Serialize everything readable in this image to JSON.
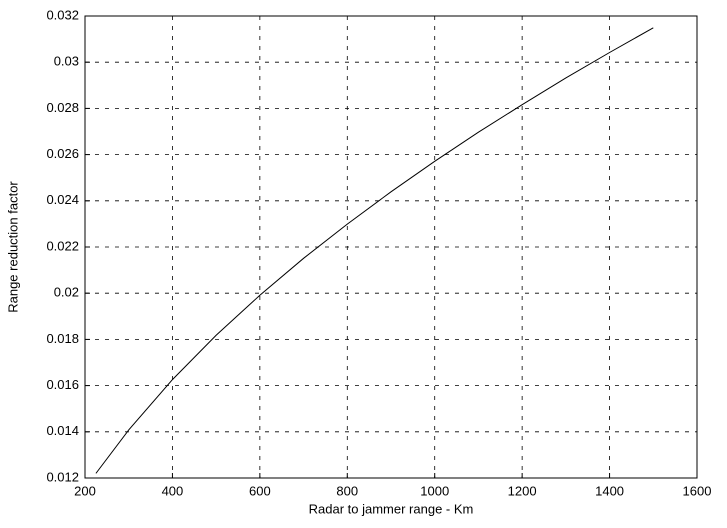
{
  "chart_data": {
    "type": "line",
    "xlabel": "Radar to jammer range - Km",
    "ylabel": "Range reduction factor",
    "x": [
      225,
      300,
      400,
      500,
      600,
      700,
      800,
      900,
      1000,
      1100,
      1200,
      1300,
      1400,
      1500
    ],
    "values": [
      0.0122,
      0.01408,
      0.01626,
      0.01818,
      0.01991,
      0.02151,
      0.02299,
      0.02439,
      0.02571,
      0.02697,
      0.02816,
      0.02932,
      0.03042,
      0.03149
    ],
    "color": "#000000",
    "xlim": [
      200,
      1600
    ],
    "xticks": [
      200,
      400,
      600,
      800,
      1000,
      1200,
      1400,
      1600
    ],
    "ylim": [
      0.012,
      0.032
    ],
    "yticks": [
      0.012,
      0.014,
      0.016,
      0.018,
      0.02,
      0.022,
      0.024,
      0.026,
      0.028,
      0.03,
      0.032
    ],
    "grid": true
  }
}
